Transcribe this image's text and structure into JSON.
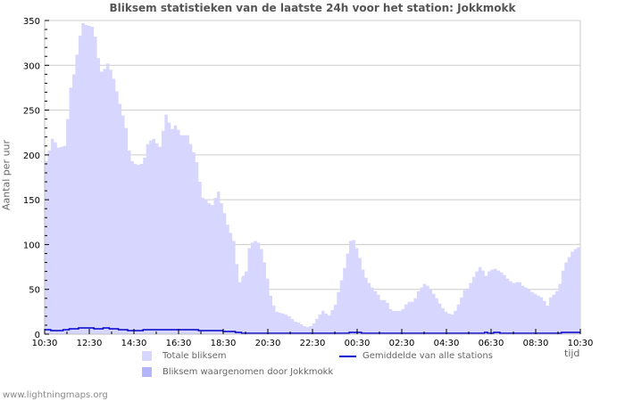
{
  "title": "Bliksem statistieken van de laatste 24h voor het station: Jokkmokk",
  "footer": "www.lightningmaps.org",
  "legend": {
    "total": "Totale bliksem",
    "station": "Bliksem waargenomen door Jokkmokk",
    "average": "Gemiddelde van alle stations"
  },
  "colors": {
    "total_fill": "#d6d6ff",
    "station_fill": "#b4b4ff",
    "average_line": "#0000cc",
    "grid": "#cccccc",
    "axis": "#c0c0c0"
  },
  "chart_data": {
    "type": "area",
    "title": "Bliksem statistieken van de laatste 24h voor het station: Jokkmokk",
    "xlabel": "tijd",
    "ylabel": "Aantal per uur",
    "ylim": [
      0,
      350
    ],
    "yticks": [
      0,
      50,
      100,
      150,
      200,
      250,
      300,
      350
    ],
    "xticks": [
      "10:30",
      "12:30",
      "14:30",
      "16:30",
      "18:30",
      "20:30",
      "22:30",
      "00:30",
      "02:30",
      "04:30",
      "06:30",
      "08:30",
      "10:30"
    ],
    "grid": true,
    "legend_position": "bottom",
    "x_step_minutes": 10,
    "series": [
      {
        "name": "Totale bliksem",
        "type": "area",
        "values": [
          193,
          205,
          218,
          214,
          208,
          209,
          210,
          240,
          275,
          290,
          312,
          333,
          347,
          345,
          344,
          343,
          332,
          308,
          293,
          296,
          302,
          295,
          285,
          271,
          257,
          244,
          230,
          205,
          193,
          190,
          189,
          190,
          197,
          212,
          216,
          218,
          213,
          209,
          227,
          245,
          236,
          229,
          233,
          228,
          222,
          222,
          222,
          212,
          203,
          192,
          170,
          152,
          150,
          146,
          144,
          152,
          159,
          146,
          135,
          122,
          113,
          104,
          78,
          58,
          65,
          70,
          96,
          102,
          104,
          102,
          95,
          80,
          62,
          43,
          32,
          25,
          24,
          23,
          22,
          20,
          17,
          14,
          13,
          11,
          9,
          8,
          9,
          12,
          17,
          22,
          26,
          23,
          21,
          27,
          33,
          47,
          60,
          74,
          90,
          104,
          105,
          96,
          85,
          72,
          63,
          57,
          52,
          48,
          44,
          38,
          38,
          35,
          28,
          26,
          26,
          26,
          28,
          33,
          36,
          36,
          40,
          48,
          52,
          56,
          54,
          50,
          45,
          40,
          34,
          29,
          25,
          23,
          22,
          26,
          33,
          41,
          49,
          51,
          57,
          64,
          70,
          75,
          71,
          65,
          70,
          72,
          73,
          71,
          69,
          66,
          62,
          59,
          57,
          58,
          58,
          54,
          52,
          50,
          47,
          45,
          43,
          41,
          37,
          32,
          41,
          44,
          48,
          56,
          71,
          80,
          86,
          92,
          95,
          97
        ]
      },
      {
        "name": "Bliksem waargenomen door Jokkmokk",
        "type": "area",
        "values": [
          0
        ]
      },
      {
        "name": "Gemiddelde van alle stations",
        "type": "line",
        "values": [
          5,
          5,
          4,
          4,
          4,
          4,
          5,
          5,
          6,
          6,
          6,
          7,
          7,
          7,
          7,
          7,
          6,
          6,
          6,
          7,
          7,
          6,
          6,
          6,
          5,
          5,
          5,
          4,
          4,
          4,
          4,
          4,
          5,
          5,
          5,
          5,
          5,
          5,
          5,
          5,
          5,
          5,
          5,
          5,
          5,
          5,
          5,
          5,
          5,
          5,
          4,
          4,
          4,
          4,
          4,
          4,
          4,
          4,
          3,
          3,
          3,
          3,
          2,
          2,
          1,
          1,
          1,
          1,
          1,
          1,
          1,
          1,
          1,
          1,
          1,
          1,
          1,
          1,
          1,
          1,
          1,
          1,
          1,
          1,
          1,
          1,
          1,
          1,
          1,
          1,
          1,
          1,
          1,
          1,
          1,
          1,
          1,
          1,
          1,
          2,
          2,
          2,
          2,
          1,
          1,
          1,
          1,
          1,
          1,
          1,
          1,
          1,
          1,
          1,
          1,
          1,
          1,
          1,
          1,
          1,
          1,
          1,
          1,
          1,
          1,
          1,
          1,
          1,
          1,
          1,
          1,
          1,
          1,
          1,
          1,
          1,
          1,
          1,
          1,
          1,
          1,
          1,
          1,
          2,
          1,
          1,
          2,
          2,
          1,
          1,
          1,
          1,
          1,
          1,
          1,
          1,
          1,
          1,
          1,
          1,
          1,
          1,
          1,
          1,
          1,
          1,
          1,
          1,
          2,
          2,
          2,
          2,
          2,
          2
        ]
      }
    ]
  }
}
